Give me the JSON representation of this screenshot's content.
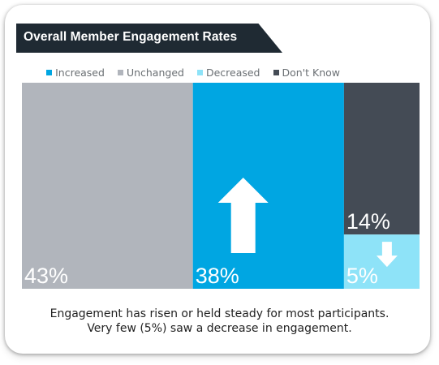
{
  "title": "Overall Member Engagement Rates",
  "caption": {
    "line1": "Engagement has risen or held steady for most participants.",
    "line2": "Very few (5%) saw a decrease in engagement."
  },
  "colors": {
    "Increased": "#00a6e2",
    "Unchanged": "#b1b5bc",
    "Decreased": "#8ee3f8",
    "Don't Know": "#444b55",
    "title_bg": "#1f2a33"
  },
  "chart_data": {
    "type": "bar",
    "stacked_column_last": true,
    "legend_placement": "top-right",
    "legend": [
      "Increased",
      "Unchanged",
      "Decreased",
      "Don't Know"
    ],
    "categories": [
      "Unchanged",
      "Increased",
      "Don't Know",
      "Decreased"
    ],
    "values": [
      43,
      38,
      14,
      5
    ],
    "labels": [
      "43%",
      "38%",
      "14%",
      "5%"
    ],
    "unit": "%",
    "arrows": {
      "Increased": "up",
      "Decreased": "down"
    }
  }
}
